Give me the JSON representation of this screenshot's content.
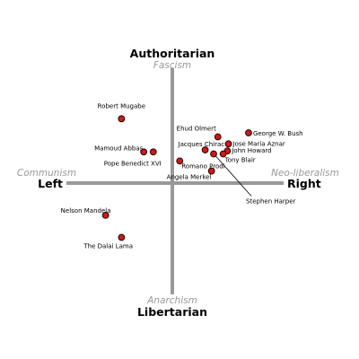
{
  "chart_data": {
    "type": "scatter",
    "title": "",
    "xlabel": "",
    "ylabel": "",
    "xlim": [
      -10,
      10
    ],
    "ylim": [
      -10,
      10
    ],
    "grid": false,
    "axes": {
      "top": {
        "main": "Authoritarian",
        "sub": "Fascism"
      },
      "bottom": {
        "main": "Libertarian",
        "sub": "Anarchism"
      },
      "left": {
        "main": "Left",
        "sub": "Communism"
      },
      "right": {
        "main": "Right",
        "sub": "Neo-liberalism"
      }
    },
    "colors": {
      "axis": "#999999",
      "point": "#cc1a1a",
      "sub_label": "#999999"
    },
    "points": [
      {
        "label": "Robert Mugabe",
        "x": -4.8,
        "y": 6.4
      },
      {
        "label": "Ehud Olmert",
        "x": 4.3,
        "y": 4.6
      },
      {
        "label": "George W. Bush",
        "x": 7.2,
        "y": 5.0
      },
      {
        "label": "Mamoud Abbas",
        "x": -2.7,
        "y": 3.1
      },
      {
        "label": "Pope Benedict XVI",
        "x": -1.8,
        "y": 3.1
      },
      {
        "label": "Jacques Chirac",
        "x": 3.1,
        "y": 3.3
      },
      {
        "label": "Jose Maria Aznar",
        "x": 5.3,
        "y": 3.9
      },
      {
        "label": "John Howard",
        "x": 5.2,
        "y": 3.2
      },
      {
        "label": "Tony Blair",
        "x": 4.8,
        "y": 2.9
      },
      {
        "label": "Romano Prodi",
        "x": 0.7,
        "y": 2.2
      },
      {
        "label": "Angela Merkel",
        "x": 3.7,
        "y": 1.2
      },
      {
        "label": "Stephen Harper",
        "x": 3.9,
        "y": 2.9
      },
      {
        "label": "Nelson Mandela",
        "x": -6.3,
        "y": -3.2
      },
      {
        "label": "The Dalai Lama",
        "x": -4.8,
        "y": -5.4
      }
    ]
  }
}
